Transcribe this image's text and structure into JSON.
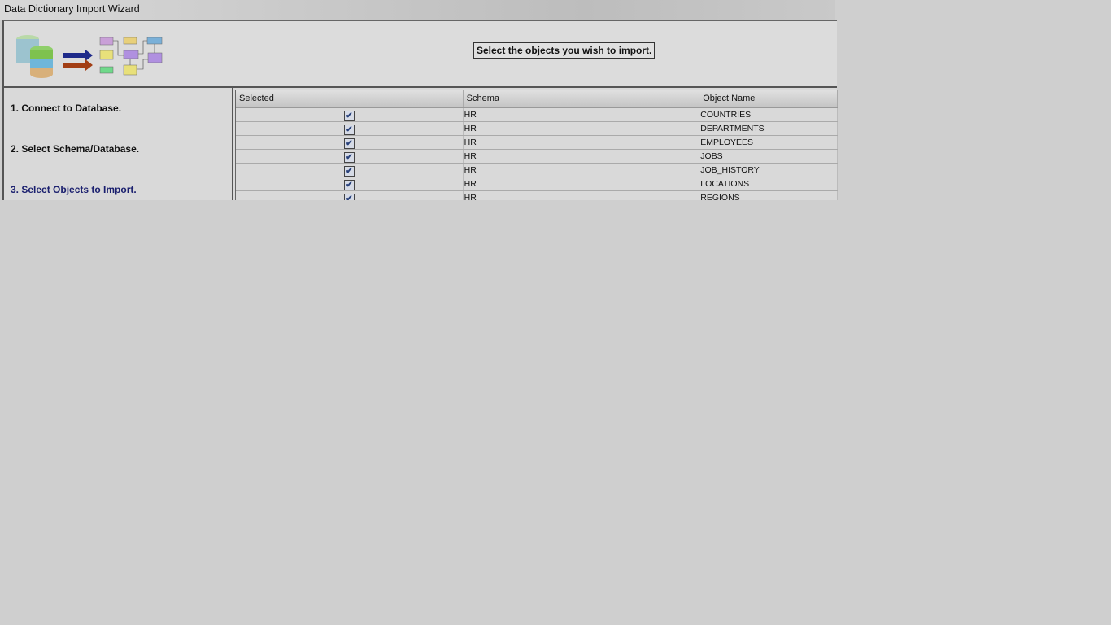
{
  "window": {
    "title": "Data Dictionary Import Wizard"
  },
  "header": {
    "prompt": "Select the objects you wish to import."
  },
  "steps": [
    {
      "label": "1. Connect to Database.",
      "active": false
    },
    {
      "label": "2. Select Schema/Database.",
      "active": false
    },
    {
      "label": "3. Select Objects to Import.",
      "active": true
    }
  ],
  "table": {
    "columns": [
      "Selected",
      "Schema",
      "Object Name"
    ],
    "rows": [
      {
        "selected": true,
        "schema": "HR",
        "object": "COUNTRIES"
      },
      {
        "selected": true,
        "schema": "HR",
        "object": "DEPARTMENTS"
      },
      {
        "selected": true,
        "schema": "HR",
        "object": "EMPLOYEES"
      },
      {
        "selected": true,
        "schema": "HR",
        "object": "JOBS"
      },
      {
        "selected": true,
        "schema": "HR",
        "object": "JOB_HISTORY"
      },
      {
        "selected": true,
        "schema": "HR",
        "object": "LOCATIONS"
      },
      {
        "selected": true,
        "schema": "HR",
        "object": "REGIONS"
      }
    ]
  },
  "colors": {
    "active_step": "#1a1f6e",
    "checkbox": "#27407a"
  }
}
